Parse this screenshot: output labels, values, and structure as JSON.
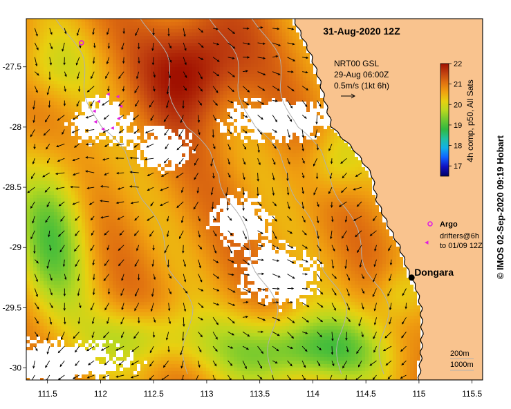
{
  "title": "31-Aug-2020 12Z",
  "map": {
    "lon_range": [
      111.3,
      115.6
    ],
    "lat_range": [
      -30.1,
      -27.1
    ],
    "x_ticks": [
      "111.5",
      "112",
      "112.5",
      "113",
      "113.5",
      "114",
      "114.5",
      "115",
      "115.5"
    ],
    "y_ticks": [
      "-27.5",
      "-28",
      "-28.5",
      "-29",
      "-29.5",
      "-30"
    ],
    "land_color": "#f9c38e",
    "coast_color": "#000000"
  },
  "current_legend": {
    "source": "NRT00 GSL",
    "date": "29-Aug 06:00Z",
    "scale": "0.5m/s (1kt 6h)"
  },
  "colorbar": {
    "label": "4h comp, p50, All Sats",
    "ticks": [
      "22",
      "21",
      "20",
      "19",
      "18",
      "17"
    ],
    "min": 16.5,
    "max": 22,
    "stops": [
      "#000066",
      "#1010c0",
      "#1060ff",
      "#10b0e8",
      "#20c0a0",
      "#30b840",
      "#70c830",
      "#b8d820",
      "#e8d010",
      "#f0a010",
      "#e07010",
      "#c04010",
      "#a01000"
    ]
  },
  "legend": {
    "argo_label": "Argo",
    "drifters_label": "drifters@6h",
    "drifters_period": "to 01/09 12Z",
    "argo_color": "#e020e0",
    "drifter_color": "#e020e0"
  },
  "place": {
    "name": "Dongara",
    "lon": 114.93,
    "lat": -29.25
  },
  "isobaths": {
    "label_200": "200m",
    "label_1000": "1000m"
  },
  "credit": "© IMOS 02-Sep-2020 09:19 Hobart",
  "argo_floats": [
    {
      "lon": 111.82,
      "lat": -27.3
    }
  ],
  "drifter_track": [
    {
      "lon": 111.98,
      "lat": -27.78
    },
    {
      "lon": 112.07,
      "lat": -27.72
    },
    {
      "lon": 112.16,
      "lat": -27.74
    },
    {
      "lon": 112.19,
      "lat": -27.82
    },
    {
      "lon": 112.17,
      "lat": -27.92
    },
    {
      "lon": 112.11,
      "lat": -28.0
    },
    {
      "lon": 112.02,
      "lat": -28.01
    },
    {
      "lon": 111.95,
      "lat": -27.95
    },
    {
      "lon": 111.94,
      "lat": -27.86
    }
  ]
}
